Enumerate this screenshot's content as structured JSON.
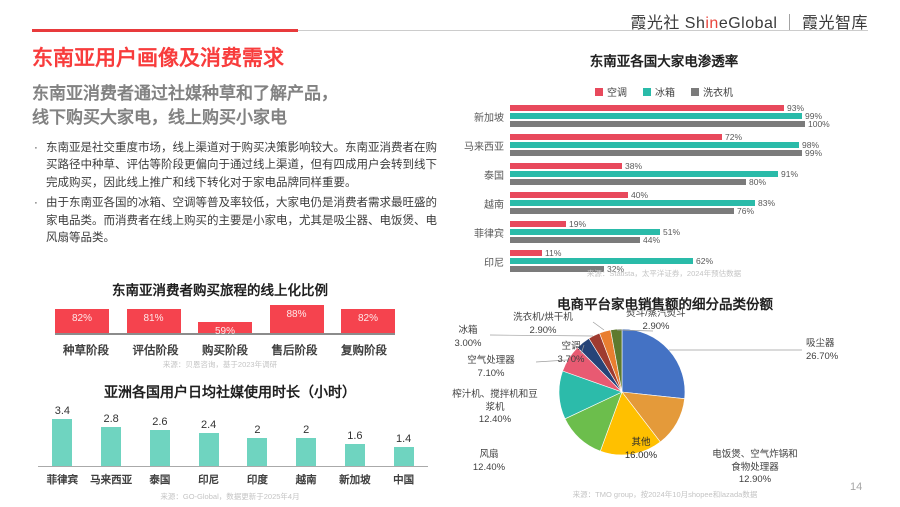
{
  "header": {
    "brand_cn": "霞光社",
    "brand_en_pre": "Sh",
    "brand_en_red": "in",
    "brand_en_post": "eGlobal",
    "separator": "｜",
    "brand_org": "霞光智库"
  },
  "page": {
    "number": "14"
  },
  "left": {
    "title": "东南亚用户画像及消费需求",
    "subtitle_line1": "东南亚消费者通过社媒种草和了解产品，",
    "subtitle_line2": "线下购买大家电，线上购买小家电",
    "bullet_marker": "·",
    "bullets": [
      "东南亚是社交重度市场，线上渠道对于购买决策影响较大。东南亚消费者在购买路径中种草、评估等阶段更偏向于通过线上渠道，但有四成用户会转到线下完成购买，因此线上推广和线下转化对于家电品牌同样重要。",
      "由于东南亚各国的冰箱、空调等普及率较低，大家电仍是消费者需求最旺盛的家电品类。而消费者在线上购买的主要是小家电，尤其是吸尘器、电饭煲、电风扇等品类。"
    ]
  },
  "chart_data": [
    {
      "type": "bar",
      "title": "东南亚消费者购买旅程的线上化比例",
      "categories": [
        "种草阶段",
        "评估阶段",
        "购买阶段",
        "售后阶段",
        "复购阶段"
      ],
      "values": [
        82,
        81,
        59,
        88,
        82
      ],
      "labels": [
        "82%",
        "81%",
        "59%",
        "88%",
        "82%"
      ],
      "unit": "%",
      "ylim": [
        0,
        100
      ],
      "bar_color": "#f5434e",
      "source": "来源：贝恩咨询，基于2023年调研"
    },
    {
      "type": "bar",
      "title": "亚洲各国用户日均社媒使用时长（小时）",
      "categories": [
        "菲律宾",
        "马来西亚",
        "泰国",
        "印尼",
        "印度",
        "越南",
        "新加坡",
        "中国"
      ],
      "values": [
        3.4,
        2.8,
        2.6,
        2.4,
        2,
        2,
        1.6,
        1.4
      ],
      "labels": [
        "3.4",
        "2.8",
        "2.6",
        "2.4",
        "2",
        "2",
        "1.6",
        "1.4"
      ],
      "unit": "小时",
      "ylim": [
        0,
        3.5
      ],
      "bar_color": "#6fd4c0",
      "source": "来源：GO-Global，数据更新于2025年4月"
    },
    {
      "type": "bar-horizontal-grouped",
      "title": "东南亚各国大家电渗透率",
      "categories": [
        "新加坡",
        "马来西亚",
        "泰国",
        "越南",
        "菲律宾",
        "印尼"
      ],
      "series": [
        {
          "name": "空调",
          "color": "#e8495c",
          "values": [
            93,
            72,
            38,
            40,
            19,
            11
          ]
        },
        {
          "name": "冰箱",
          "color": "#2abba9",
          "values": [
            99,
            98,
            91,
            83,
            51,
            62
          ]
        },
        {
          "name": "洗衣机",
          "color": "#7b7b7b",
          "values": [
            100,
            99,
            80,
            76,
            44,
            32
          ]
        }
      ],
      "unit": "%",
      "xlim": [
        0,
        100
      ],
      "legend_position": "top",
      "source": "来源：Statista，太平洋证券，2024年预估数据"
    },
    {
      "type": "pie",
      "title": "电商平台家电销售额的细分品类份额",
      "slices": [
        {
          "label": "吸尘器",
          "value": 26.7,
          "display": "26.70%",
          "color": "#4472c4",
          "label_lines": [
            "吸尘器",
            "26.70%"
          ]
        },
        {
          "label": "电饭煲、空气炸锅和食物处理器",
          "value": 12.9,
          "display": "12.90%",
          "color": "#e49a3a",
          "label_lines": [
            "电饭煲、空气炸锅和",
            "食物处理器",
            "12.90%"
          ]
        },
        {
          "label": "其他",
          "value": 16.0,
          "display": "16.00%",
          "color": "#ffc000",
          "label_lines": [
            "其他",
            "16.00%"
          ]
        },
        {
          "label": "风扇",
          "value": 12.4,
          "display": "12.40%",
          "color": "#6cbe4c",
          "label_lines": [
            "风扇",
            "12.40%"
          ]
        },
        {
          "label": "榨汁机、搅拌机和豆浆机",
          "value": 12.4,
          "display": "12.40%",
          "color": "#2cbbaa",
          "label_lines": [
            "榨汁机、搅拌机和豆",
            "浆机",
            "12.40%"
          ]
        },
        {
          "label": "空气处理器",
          "value": 7.1,
          "display": "7.10%",
          "color": "#e85a72",
          "label_lines": [
            "空气处理器",
            "7.10%"
          ]
        },
        {
          "label": "空调",
          "value": 3.7,
          "display": "3.70%",
          "color": "#264478",
          "label_lines": [
            "空调",
            "3.70%"
          ]
        },
        {
          "label": "冰箱",
          "value": 3.0,
          "display": "3.00%",
          "color": "#9e3b30",
          "label_lines": [
            "冰箱",
            "3.00%"
          ]
        },
        {
          "label": "洗衣机/烘干机",
          "value": 2.9,
          "display": "2.90%",
          "color": "#e97e30",
          "label_lines": [
            "洗衣机/烘干机",
            "2.90%"
          ]
        },
        {
          "label": "熨斗/蒸汽熨斗",
          "value": 2.9,
          "display": "2.90%",
          "color": "#5e7a2e",
          "label_lines": [
            "熨斗/蒸汽熨斗",
            "2.90%"
          ]
        }
      ],
      "source": "来源：TMO group，按2024年10月shopee和lazada数据"
    }
  ]
}
